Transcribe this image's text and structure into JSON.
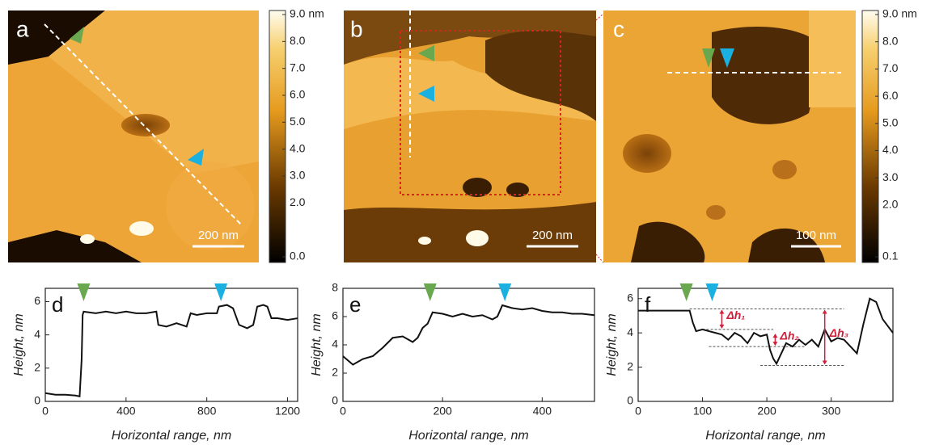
{
  "images": [
    {
      "label": "a",
      "scale_bar": "200 nm"
    },
    {
      "label": "b",
      "scale_bar": "200 nm"
    },
    {
      "label": "c",
      "scale_bar": "100 nm"
    }
  ],
  "colorbars": [
    {
      "lim": [
        0,
        9
      ],
      "ticks": [
        {
          "value": 9,
          "label": "9.0 nm"
        },
        {
          "value": 8,
          "label": "8.0"
        },
        {
          "value": 7,
          "label": "7.0"
        },
        {
          "value": 6,
          "label": "6.0"
        },
        {
          "value": 5,
          "label": "5.0"
        },
        {
          "value": 4,
          "label": "4.0"
        },
        {
          "value": 3,
          "label": "3.0"
        },
        {
          "value": 2,
          "label": "2.0"
        },
        {
          "value": 0,
          "label": "0.0"
        }
      ]
    },
    {
      "lim": [
        0.1,
        9
      ],
      "ticks": [
        {
          "value": 9,
          "label": "9.0 nm"
        },
        {
          "value": 8,
          "label": "8.0"
        },
        {
          "value": 7,
          "label": "7.0"
        },
        {
          "value": 6,
          "label": "6.0"
        },
        {
          "value": 5,
          "label": "5.0"
        },
        {
          "value": 4,
          "label": "4.0"
        },
        {
          "value": 3,
          "label": "3.0"
        },
        {
          "value": 2,
          "label": "2.0"
        },
        {
          "value": 0.1,
          "label": "0.1"
        }
      ]
    }
  ],
  "chart_data": [
    {
      "type": "line",
      "panel": "d",
      "x_label": "Horizontal range, nm",
      "y_label": "Height, nm",
      "xlim": [
        0,
        1250
      ],
      "ylim": [
        0,
        6.8
      ],
      "xticks": [
        0,
        400,
        800,
        1200
      ],
      "yticks": [
        0,
        2,
        4,
        6
      ],
      "x": [
        0,
        50,
        100,
        150,
        170,
        180,
        185,
        190,
        250,
        300,
        350,
        400,
        450,
        500,
        550,
        560,
        600,
        650,
        700,
        720,
        750,
        800,
        850,
        860,
        900,
        930,
        960,
        1000,
        1030,
        1050,
        1080,
        1100,
        1120,
        1150,
        1200,
        1250
      ],
      "series": [
        {
          "color": "#111111",
          "values": [
            0.5,
            0.4,
            0.4,
            0.35,
            0.3,
            2.5,
            5.2,
            5.4,
            5.3,
            5.4,
            5.3,
            5.4,
            5.3,
            5.3,
            5.4,
            4.6,
            4.5,
            4.7,
            4.5,
            5.3,
            5.2,
            5.3,
            5.3,
            5.7,
            5.8,
            5.6,
            4.6,
            4.4,
            4.6,
            5.7,
            5.8,
            5.7,
            5.0,
            5.0,
            4.9,
            5.0
          ]
        }
      ],
      "markers": [
        {
          "x": 190,
          "color": "#6aa84f"
        },
        {
          "x": 870,
          "color": "#1ab0e0"
        }
      ]
    },
    {
      "type": "line",
      "panel": "e",
      "x_label": "Horizontal range, nm",
      "y_label": "Height, nm",
      "xlim": [
        0,
        505
      ],
      "ylim": [
        0,
        8
      ],
      "xticks": [
        0,
        200,
        400
      ],
      "yticks": [
        0,
        2,
        4,
        6,
        8
      ],
      "x": [
        0,
        20,
        40,
        60,
        80,
        100,
        120,
        140,
        150,
        160,
        170,
        180,
        200,
        220,
        240,
        260,
        280,
        300,
        310,
        320,
        340,
        360,
        380,
        400,
        420,
        440,
        460,
        480,
        505
      ],
      "series": [
        {
          "color": "#111111",
          "values": [
            3.2,
            2.6,
            3.0,
            3.2,
            3.8,
            4.5,
            4.6,
            4.2,
            4.5,
            5.2,
            5.5,
            6.3,
            6.2,
            6.0,
            6.2,
            6.0,
            6.1,
            5.8,
            6.0,
            6.8,
            6.6,
            6.5,
            6.6,
            6.4,
            6.3,
            6.3,
            6.2,
            6.2,
            6.1
          ]
        }
      ],
      "markers": [
        {
          "x": 175,
          "color": "#6aa84f"
        },
        {
          "x": 325,
          "color": "#1ab0e0"
        }
      ]
    },
    {
      "type": "line",
      "panel": "f",
      "x_label": "Horizontal range, nm",
      "y_label": "Height, nm",
      "xlim": [
        0,
        396
      ],
      "ylim": [
        0,
        6.6
      ],
      "xticks": [
        0,
        100,
        200,
        300
      ],
      "yticks": [
        0,
        2,
        4,
        6
      ],
      "x": [
        0,
        20,
        40,
        60,
        80,
        85,
        90,
        100,
        110,
        120,
        130,
        140,
        150,
        160,
        170,
        180,
        190,
        200,
        205,
        210,
        215,
        220,
        230,
        240,
        250,
        260,
        270,
        280,
        290,
        300,
        310,
        320,
        330,
        340,
        350,
        360,
        370,
        380,
        390,
        396
      ],
      "series": [
        {
          "color": "#111111",
          "values": [
            5.3,
            5.3,
            5.3,
            5.3,
            5.3,
            4.6,
            4.1,
            4.2,
            4.1,
            4.0,
            3.9,
            3.6,
            4.0,
            3.8,
            3.4,
            4.0,
            3.8,
            3.9,
            3.0,
            2.5,
            2.2,
            2.6,
            3.4,
            3.2,
            3.6,
            3.3,
            3.6,
            3.2,
            4.2,
            3.5,
            3.7,
            3.6,
            3.2,
            2.8,
            4.5,
            6.0,
            5.8,
            4.8,
            4.3,
            4.0
          ]
        }
      ],
      "markers": [
        {
          "x": 75,
          "color": "#6aa84f"
        },
        {
          "x": 115,
          "color": "#1ab0e0"
        }
      ],
      "reference_lines": [
        {
          "y": 5.4,
          "x": [
            80,
            320
          ]
        },
        {
          "y": 4.2,
          "x": [
            100,
            210
          ]
        },
        {
          "y": 3.2,
          "x": [
            110,
            260
          ]
        },
        {
          "y": 2.1,
          "x": [
            190,
            320
          ]
        }
      ],
      "annotations": [
        {
          "text": "Δh₁",
          "x": 130,
          "y": [
            5.4,
            4.2
          ],
          "color": "#d0203a"
        },
        {
          "text": "Δh₂",
          "x": 213,
          "y": [
            4.0,
            3.2
          ],
          "color": "#d0203a"
        },
        {
          "text": "Δh₃",
          "x": 290,
          "y": [
            5.4,
            2.1
          ],
          "color": "#d0203a"
        }
      ]
    }
  ]
}
